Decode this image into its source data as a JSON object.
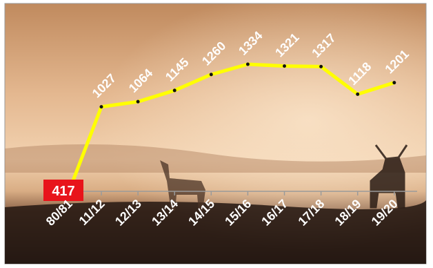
{
  "chart_data": {
    "type": "line",
    "categories": [
      "80/81",
      "11/12",
      "12/13",
      "13/14",
      "14/15",
      "15/16",
      "16/17",
      "17/18",
      "18/19",
      "19/20"
    ],
    "values": [
      417,
      1027,
      1064,
      1145,
      1260,
      1334,
      1321,
      1317,
      1118,
      1201
    ],
    "color": "#ffff00"
  }
}
